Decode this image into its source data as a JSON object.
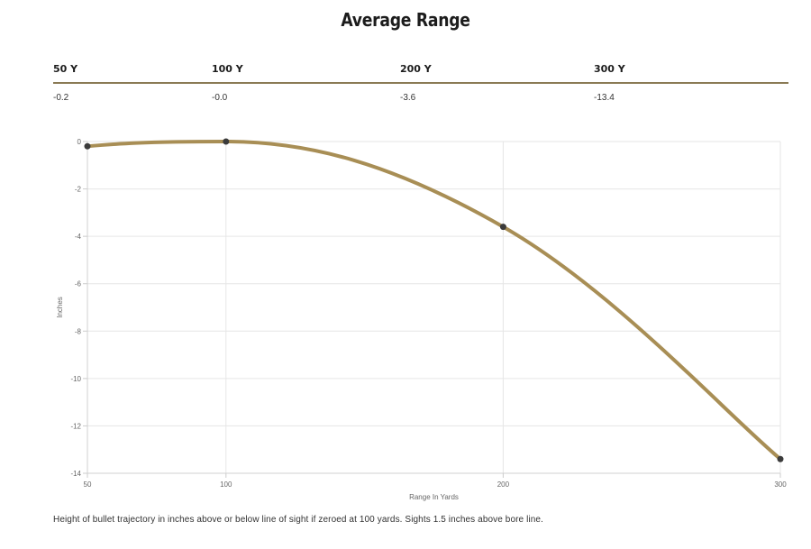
{
  "title": "Average Range",
  "table": {
    "headers": [
      "50 Y",
      "100 Y",
      "200 Y",
      "300 Y"
    ],
    "values": [
      "-0.2",
      "-0.0",
      "-3.6",
      "-13.4"
    ]
  },
  "footnote": "Height of bullet trajectory in inches above or below line of sight if zeroed at 100 yards. Sights 1.5 inches above bore line.",
  "colors": {
    "line": "#a88e55",
    "point": "#3b3b3b",
    "rule": "#8a7a55",
    "grid": "#e6e6e6"
  },
  "chart_data": {
    "type": "line",
    "x": [
      50,
      100,
      200,
      300
    ],
    "series": [
      {
        "values": [
          -0.2,
          0.0,
          -3.6,
          -13.4
        ]
      }
    ],
    "xlabel": "Range In Yards",
    "ylabel": "Inches",
    "xlim": [
      50,
      300
    ],
    "ylim": [
      -14,
      0
    ],
    "xticks": [
      50,
      100,
      200,
      300
    ],
    "yticks": [
      0,
      -2,
      -4,
      -6,
      -8,
      -10,
      -12,
      -14
    ],
    "grid": true,
    "legend": "none"
  }
}
